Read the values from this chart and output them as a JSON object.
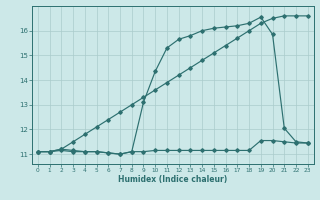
{
  "xlabel": "Humidex (Indice chaleur)",
  "bg_color": "#cce8e8",
  "line_color": "#2d7070",
  "grid_color": "#aacccc",
  "xlim": [
    -0.5,
    23.5
  ],
  "ylim": [
    10.6,
    17.0
  ],
  "line1_x": [
    0,
    1,
    2,
    3,
    4,
    5,
    6,
    7,
    8,
    9,
    10,
    11,
    12,
    13,
    14,
    15,
    16,
    17,
    18,
    19,
    20,
    21,
    22,
    23
  ],
  "line1_y": [
    11.1,
    11.1,
    11.15,
    11.1,
    11.1,
    11.1,
    11.05,
    11.0,
    11.1,
    13.1,
    14.35,
    15.3,
    15.65,
    15.8,
    16.0,
    16.1,
    16.15,
    16.2,
    16.3,
    16.55,
    15.85,
    12.05,
    11.5,
    11.45
  ],
  "line2_x": [
    0,
    1,
    2,
    3,
    4,
    5,
    6,
    7,
    8,
    9,
    10,
    11,
    12,
    13,
    14,
    15,
    16,
    17,
    18,
    19,
    20,
    21,
    22,
    23
  ],
  "line2_y": [
    11.1,
    11.1,
    11.2,
    11.15,
    11.1,
    11.1,
    11.05,
    11.0,
    11.1,
    11.1,
    11.15,
    11.15,
    11.15,
    11.15,
    11.15,
    11.15,
    11.15,
    11.15,
    11.15,
    11.55,
    11.55,
    11.5,
    11.45,
    11.45
  ],
  "line3_x": [
    0,
    1,
    2,
    3,
    4,
    5,
    6,
    7,
    8,
    9,
    10,
    11,
    12,
    13,
    14,
    15,
    16,
    17,
    18,
    19,
    20,
    21,
    22,
    23
  ],
  "line3_y": [
    11.1,
    11.1,
    11.2,
    11.5,
    11.8,
    12.1,
    12.4,
    12.7,
    13.0,
    13.3,
    13.6,
    13.9,
    14.2,
    14.5,
    14.8,
    15.1,
    15.4,
    15.7,
    16.0,
    16.3,
    16.5,
    16.6,
    16.6,
    16.6
  ],
  "yticks": [
    11,
    12,
    13,
    14,
    15,
    16
  ],
  "xticks": [
    0,
    1,
    2,
    3,
    4,
    5,
    6,
    7,
    8,
    9,
    10,
    11,
    12,
    13,
    14,
    15,
    16,
    17,
    18,
    19,
    20,
    21,
    22,
    23
  ]
}
